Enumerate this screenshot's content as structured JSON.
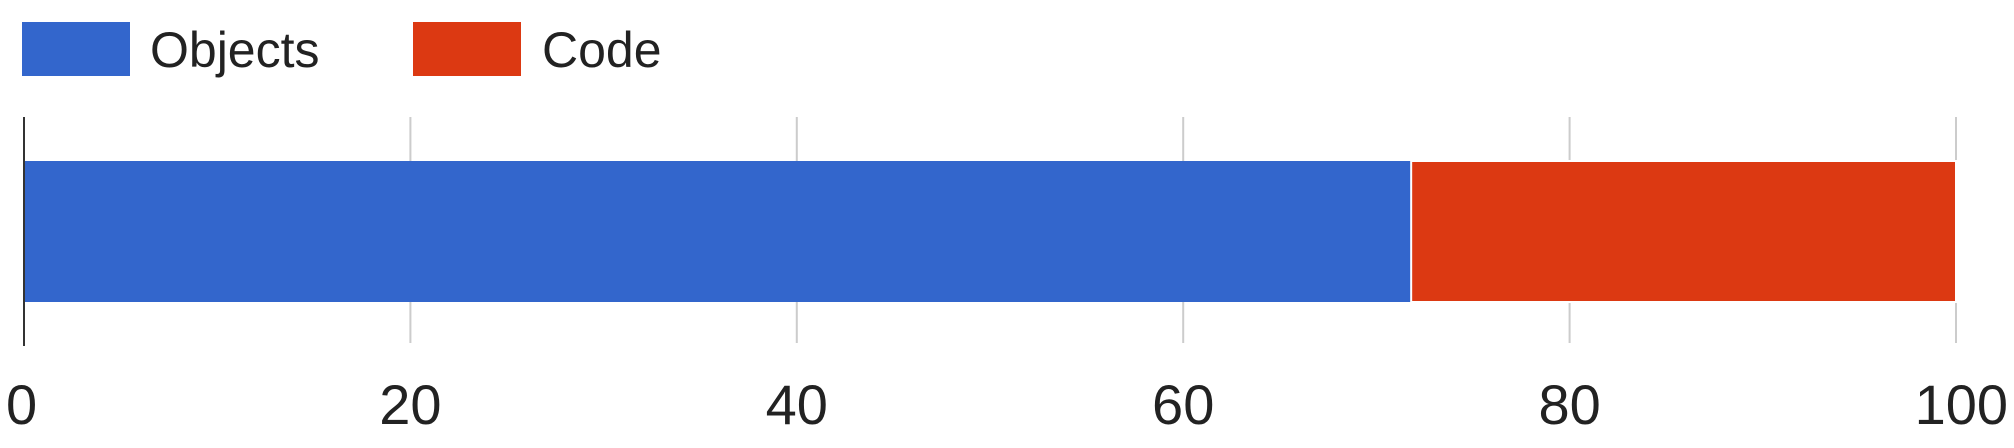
{
  "chart_data": {
    "type": "bar",
    "orientation": "horizontal",
    "stacked": true,
    "title": "",
    "xlabel": "",
    "ylabel": "",
    "xlim": [
      0,
      100
    ],
    "x_ticks": [
      0,
      20,
      40,
      60,
      80,
      100
    ],
    "tick_labels": [
      "0",
      "20",
      "40",
      "60",
      "80",
      "100"
    ],
    "grid": true,
    "legend_position": "top-left",
    "categories": [
      ""
    ],
    "series": [
      {
        "name": "Objects",
        "values": [
          71.8
        ],
        "color": "#3366cc"
      },
      {
        "name": "Code",
        "values": [
          28.2
        ],
        "color": "#dc3912"
      }
    ]
  }
}
